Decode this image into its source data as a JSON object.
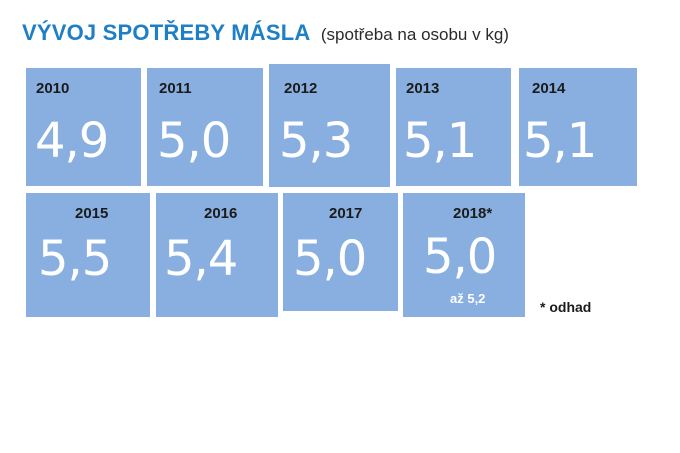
{
  "header": {
    "title": "VÝVOJ SPOTŘEBY MÁSLA",
    "subtitle": "(spotřeba na osobu v kg)"
  },
  "chart_data": {
    "type": "table",
    "title": "VÝVOJ SPOTŘEBY MÁSLA",
    "subtitle": "(spotřeba na osobu v kg)",
    "unit": "kg na osobu",
    "categories": [
      "2010",
      "2011",
      "2012",
      "2013",
      "2014",
      "2015",
      "2016",
      "2017",
      "2018*"
    ],
    "values": [
      "4,9",
      "5,0",
      "5,3",
      "5,1",
      "5,1",
      "5,5",
      "5,4",
      "5,0",
      "5,0"
    ],
    "numeric_values": [
      4.9,
      5.0,
      5.3,
      5.1,
      5.1,
      5.5,
      5.4,
      5.0,
      5.0
    ],
    "annotations": {
      "2018*": "až 5,2"
    },
    "footnote": "* odhad"
  },
  "colors": {
    "title": "#1f7fc6",
    "tile": "#88afe0",
    "value_text": "#ffffff",
    "year_text": "#1b1b1b"
  }
}
